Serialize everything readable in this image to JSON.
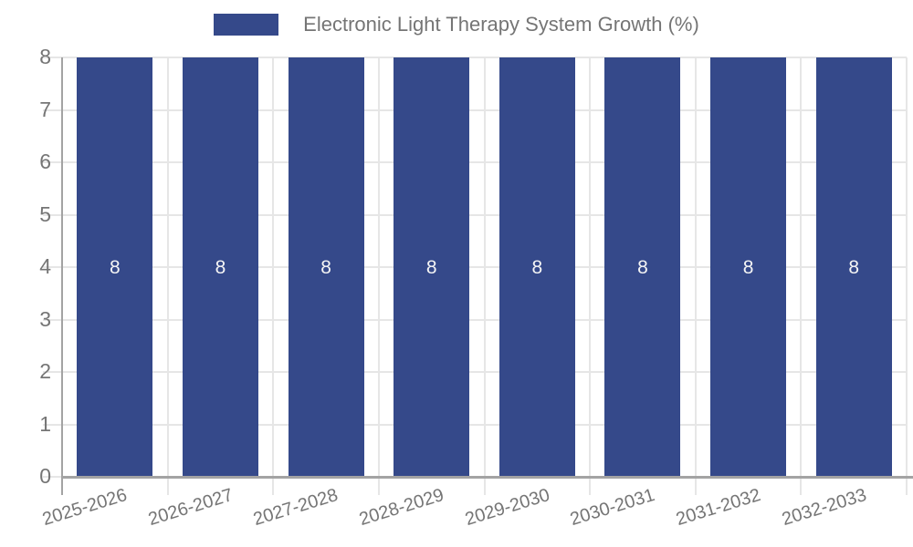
{
  "legend": {
    "label": "Electronic Light Therapy System Growth (%)"
  },
  "chart_data": {
    "type": "bar",
    "title": "Electronic Light Therapy System Growth (%)",
    "legend_position": "top",
    "categories": [
      "2025-2026",
      "2026-2027",
      "2027-2028",
      "2028-2029",
      "2029-2030",
      "2030-2031",
      "2031-2032",
      "2032-2033"
    ],
    "values": [
      8,
      8,
      8,
      8,
      8,
      8,
      8,
      8
    ],
    "bar_value_labels": [
      "8",
      "8",
      "8",
      "8",
      "8",
      "8",
      "8",
      "8"
    ],
    "xlabel": "",
    "ylabel": "",
    "ylim": [
      0,
      8
    ],
    "yticks": [
      0,
      1,
      2,
      3,
      4,
      5,
      6,
      7,
      8
    ],
    "grid": true,
    "colors": {
      "bar": "#35498a",
      "grid": "#e6e6e6",
      "axis": "#a3a3a3",
      "label_text": "#757575",
      "value_label": "#f5f5f5",
      "background": "#ffffff"
    }
  }
}
